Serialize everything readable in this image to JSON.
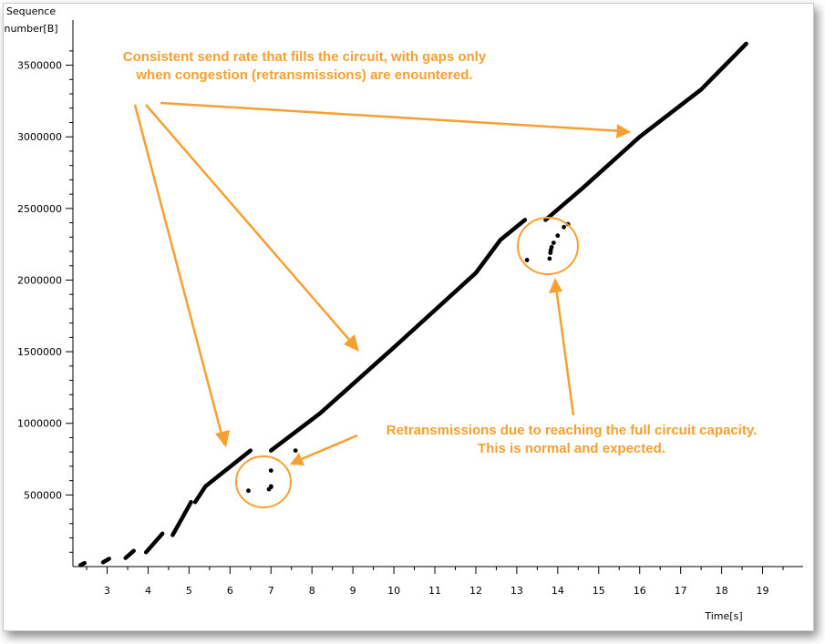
{
  "chart_data": {
    "type": "scatter",
    "xlabel": "Time[s]",
    "ylabel_line1": "Sequence",
    "ylabel_line2": "number[B]",
    "xlim": [
      2.2,
      20.0
    ],
    "ylim": [
      0,
      3650000
    ],
    "x_ticks": [
      3,
      4,
      5,
      6,
      7,
      8,
      9,
      10,
      11,
      12,
      13,
      14,
      15,
      16,
      17,
      18,
      19
    ],
    "y_ticks": [
      500000,
      1000000,
      1500000,
      2000000,
      2500000,
      3000000,
      3500000
    ],
    "y_tick_labels": [
      "500000",
      "1000000",
      "1500000",
      "2000000",
      "2500000",
      "3000000",
      "3500000"
    ],
    "grid": false,
    "legend": "none",
    "colors": {
      "data": "#000000",
      "annotation": "#f5a030"
    },
    "series": [
      {
        "kind": "segments",
        "segments": [
          [
            [
              2.35,
              10000
            ],
            [
              2.45,
              25000
            ]
          ],
          [
            [
              2.9,
              30000
            ],
            [
              3.05,
              55000
            ]
          ],
          [
            [
              3.45,
              60000
            ],
            [
              3.65,
              110000
            ]
          ],
          [
            [
              3.95,
              100000
            ],
            [
              4.35,
              230000
            ]
          ],
          [
            [
              4.6,
              220000
            ],
            [
              5.05,
              450000
            ]
          ],
          [
            [
              5.15,
              450000
            ],
            [
              5.4,
              560000
            ],
            [
              5.75,
              640000
            ],
            [
              6.5,
              810000
            ]
          ],
          [
            [
              7.0,
              810000
            ],
            [
              7.6,
              940000
            ],
            [
              8.2,
              1070000
            ],
            [
              10.0,
              1530000
            ],
            [
              12.0,
              2050000
            ],
            [
              12.6,
              2280000
            ],
            [
              13.2,
              2420000
            ]
          ],
          [
            [
              13.7,
              2420000
            ],
            [
              14.6,
              2640000
            ],
            [
              16.0,
              3000000
            ],
            [
              17.5,
              3330000
            ],
            [
              18.6,
              3650000
            ]
          ]
        ]
      },
      {
        "kind": "points",
        "points": [
          [
            6.45,
            530000
          ],
          [
            6.95,
            540000
          ],
          [
            7.0,
            555000
          ],
          [
            7.0,
            560000
          ],
          [
            7.0,
            670000
          ],
          [
            7.6,
            810000
          ],
          [
            13.25,
            2140000
          ],
          [
            13.8,
            2150000
          ],
          [
            13.82,
            2190000
          ],
          [
            13.83,
            2210000
          ],
          [
            13.85,
            2230000
          ],
          [
            13.9,
            2260000
          ],
          [
            14.0,
            2310000
          ],
          [
            14.15,
            2370000
          ],
          [
            14.25,
            2390000
          ]
        ]
      }
    ],
    "annotations": [
      {
        "lines": [
          "Consistent send rate that fills the circuit, with gaps only",
          "when congestion (retransmissions) are enountered."
        ]
      },
      {
        "lines": [
          "Retransmissions due to reaching the full circuit capacity.",
          "This is normal and expected."
        ]
      }
    ]
  }
}
